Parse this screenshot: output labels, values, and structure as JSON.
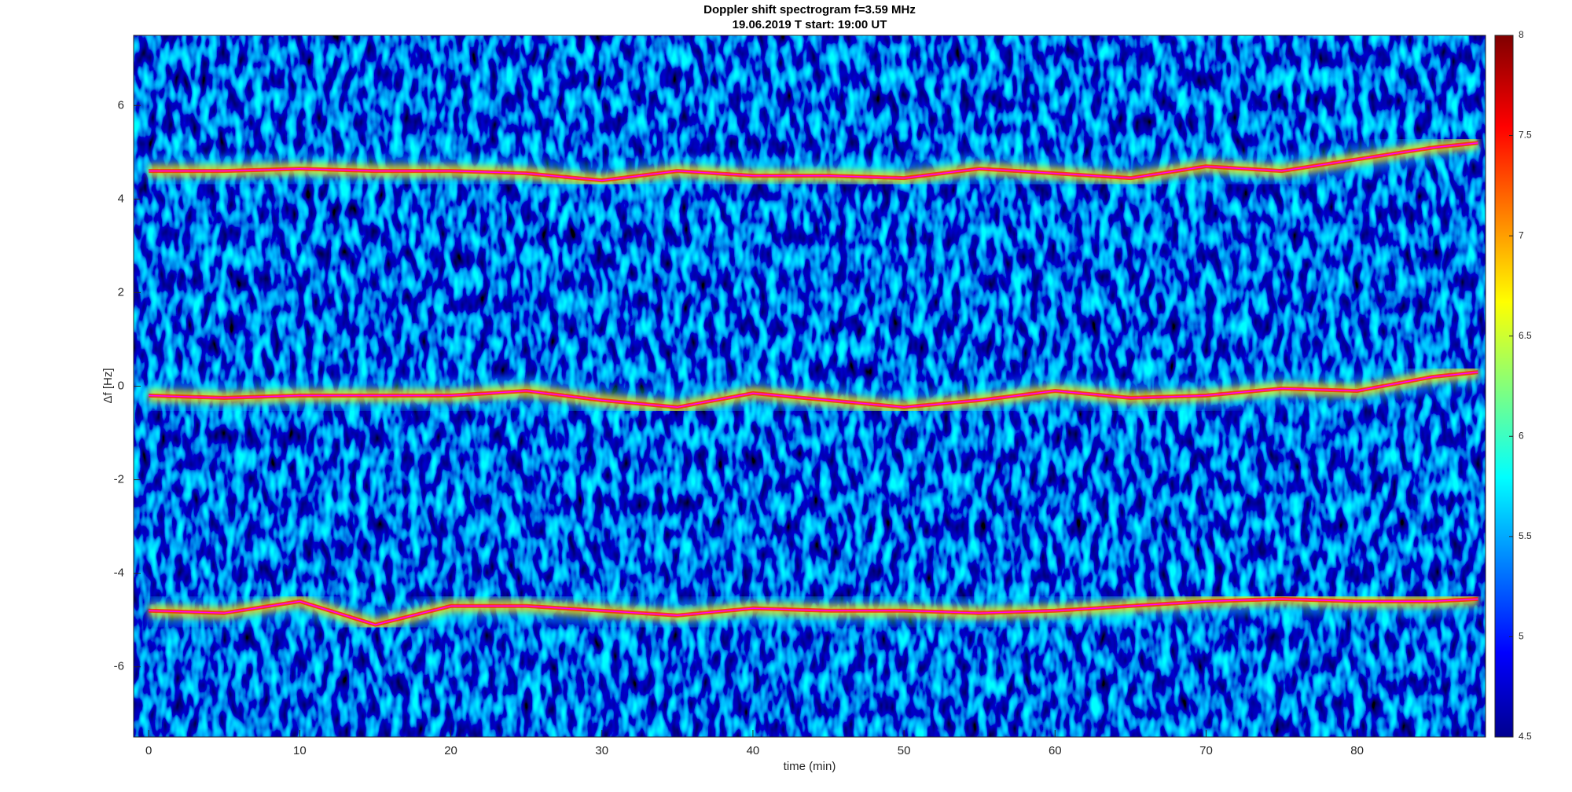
{
  "chart_data": {
    "type": "spectrogram",
    "title": "Doppler shift spectrogram f=3.59 MHz",
    "subtitle": "19.06.2019   T start: 19:00 UT",
    "x_label": "time (min)",
    "y_label": "Δf [Hz]",
    "x": [
      0,
      5,
      10,
      15,
      20,
      25,
      30,
      35,
      40,
      45,
      50,
      55,
      60,
      65,
      70,
      75,
      80,
      85,
      88
    ],
    "series": [
      {
        "color": "#ff00ff",
        "values": [
          4.6,
          4.6,
          4.65,
          4.6,
          4.6,
          4.55,
          4.4,
          4.6,
          4.5,
          4.5,
          4.45,
          4.65,
          4.55,
          4.45,
          4.7,
          4.6,
          4.85,
          5.1,
          5.2
        ]
      },
      {
        "color": "#ff00ff",
        "values": [
          -0.2,
          -0.25,
          -0.2,
          -0.2,
          -0.2,
          -0.1,
          -0.3,
          -0.45,
          -0.15,
          -0.3,
          -0.45,
          -0.3,
          -0.1,
          -0.25,
          -0.2,
          -0.05,
          -0.1,
          0.2,
          0.3
        ]
      },
      {
        "color": "#ff00ff",
        "values": [
          -4.8,
          -4.85,
          -4.6,
          -5.1,
          -4.7,
          -4.7,
          -4.8,
          -4.9,
          -4.75,
          -4.8,
          -4.8,
          -4.85,
          -4.8,
          -4.7,
          -4.6,
          -4.55,
          -4.6,
          -4.6,
          -4.55
        ]
      }
    ],
    "xlim": [
      -1,
      88.5
    ],
    "xticks": [
      0,
      10,
      20,
      30,
      40,
      50,
      60,
      70,
      80
    ],
    "ylim": [
      -7.5,
      7.5
    ],
    "yticks": [
      -6,
      -4,
      -2,
      0,
      2,
      4,
      6
    ],
    "colormap": "jet",
    "clim": [
      4.5,
      8
    ],
    "cticks": [
      4.5,
      5,
      5.5,
      6,
      6.5,
      7,
      7.5,
      8
    ]
  }
}
